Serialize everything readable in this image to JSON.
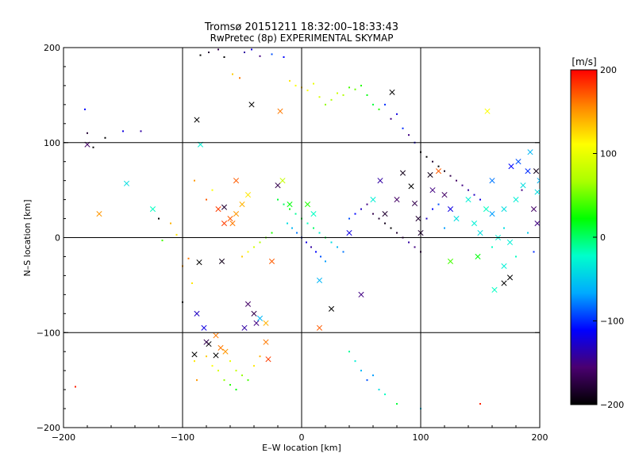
{
  "chart_data": {
    "type": "scatter",
    "title": "Tromsø 20151211 18:32:00–18:33:43",
    "subtitle": "RwPretec (8p) EXPERIMENTAL SKYMAP",
    "xlabel": "E–W location [km]",
    "ylabel": "N–S location [km]",
    "xlim": [
      -200,
      200
    ],
    "ylim": [
      -200,
      200
    ],
    "x_ticks": [
      -200,
      -100,
      0,
      100,
      200
    ],
    "y_ticks": [
      -200,
      -100,
      0,
      100,
      200
    ],
    "x_tick_labels": [
      "−200",
      "−100",
      "0",
      "100",
      "200"
    ],
    "y_tick_labels": [
      "−200",
      "−100",
      "0",
      "100",
      "200"
    ],
    "grid": true,
    "colorbar": {
      "label": "[m/s]",
      "range": [
        -200,
        200
      ],
      "ticks": [
        200,
        100,
        0,
        -100,
        -200
      ],
      "tick_labels": [
        "200",
        "100",
        "0",
        "−100",
        "−200"
      ],
      "colormap": [
        "#000000",
        "#4a0070",
        "#0000ff",
        "#00aaff",
        "#00ffcc",
        "#00ff00",
        "#aaff00",
        "#ffff00",
        "#ff8800",
        "#ff0000"
      ]
    },
    "series": [
      {
        "marker": "x",
        "points": [
          [
            -180,
            98,
            -160
          ],
          [
            -170,
            25,
            150
          ],
          [
            -147,
            57,
            -40
          ],
          [
            -125,
            30,
            -20
          ],
          [
            -88,
            124,
            -200
          ],
          [
            -85,
            98,
            -30
          ],
          [
            -86,
            -26,
            -200
          ],
          [
            -82,
            -95,
            -120
          ],
          [
            -78,
            -112,
            -200
          ],
          [
            -90,
            -123,
            -200
          ],
          [
            -88,
            -80,
            -130
          ],
          [
            -80,
            -110,
            -170
          ],
          [
            -72,
            -124,
            -200
          ],
          [
            -72,
            -103,
            160
          ],
          [
            -68,
            -116,
            160
          ],
          [
            -64,
            -120,
            150
          ],
          [
            -60,
            20,
            170
          ],
          [
            -58,
            15,
            160
          ],
          [
            -55,
            25,
            150
          ],
          [
            -55,
            60,
            170
          ],
          [
            -50,
            35,
            140
          ],
          [
            -45,
            45,
            120
          ],
          [
            -70,
            30,
            180
          ],
          [
            -67,
            -25,
            -190
          ],
          [
            -65,
            32,
            -180
          ],
          [
            -65,
            15,
            180
          ],
          [
            -48,
            -95,
            -140
          ],
          [
            -45,
            -70,
            -160
          ],
          [
            -40,
            -80,
            -170
          ],
          [
            -38,
            -90,
            -150
          ],
          [
            -35,
            -85,
            -60
          ],
          [
            -30,
            -110,
            160
          ],
          [
            -30,
            -90,
            140
          ],
          [
            -28,
            -128,
            180
          ],
          [
            -25,
            -25,
            170
          ],
          [
            -20,
            55,
            -170
          ],
          [
            -42,
            140,
            -200
          ],
          [
            -18,
            133,
            160
          ],
          [
            -16,
            60,
            80
          ],
          [
            -10,
            35,
            20
          ],
          [
            5,
            35,
            30
          ],
          [
            10,
            25,
            -20
          ],
          [
            15,
            -45,
            -60
          ],
          [
            15,
            -95,
            170
          ],
          [
            25,
            -75,
            -200
          ],
          [
            40,
            5,
            -120
          ],
          [
            50,
            -60,
            -150
          ],
          [
            60,
            40,
            -30
          ],
          [
            66,
            60,
            -140
          ],
          [
            70,
            25,
            -180
          ],
          [
            76,
            153,
            -200
          ],
          [
            80,
            40,
            -160
          ],
          [
            85,
            68,
            -190
          ],
          [
            92,
            54,
            -200
          ],
          [
            95,
            36,
            -170
          ],
          [
            98,
            20,
            -180
          ],
          [
            100,
            5,
            -180
          ],
          [
            108,
            66,
            -190
          ],
          [
            110,
            50,
            -150
          ],
          [
            115,
            70,
            170
          ],
          [
            120,
            45,
            -160
          ],
          [
            125,
            30,
            -120
          ],
          [
            125,
            -25,
            40
          ],
          [
            130,
            20,
            -40
          ],
          [
            140,
            40,
            -30
          ],
          [
            145,
            15,
            -30
          ],
          [
            150,
            5,
            -40
          ],
          [
            155,
            30,
            -20
          ],
          [
            156,
            133,
            110
          ],
          [
            160,
            60,
            -80
          ],
          [
            160,
            25,
            -70
          ],
          [
            165,
            0,
            -30
          ],
          [
            170,
            30,
            -40
          ],
          [
            170,
            -30,
            -30
          ],
          [
            170,
            -48,
            -200
          ],
          [
            175,
            -5,
            -30
          ],
          [
            176,
            75,
            -110
          ],
          [
            180,
            40,
            -30
          ],
          [
            182,
            80,
            -90
          ],
          [
            186,
            55,
            -40
          ],
          [
            190,
            70,
            -100
          ],
          [
            192,
            90,
            -60
          ],
          [
            195,
            30,
            -160
          ],
          [
            197,
            70,
            -190
          ],
          [
            198,
            48,
            -40
          ],
          [
            198,
            15,
            -150
          ],
          [
            200,
            60,
            -60
          ],
          [
            162,
            -55,
            -20
          ],
          [
            175,
            -42,
            -200
          ],
          [
            148,
            -20,
            20
          ]
        ]
      },
      {
        "marker": "dot",
        "points": [
          [
            -180,
            110,
            -180
          ],
          [
            -175,
            95,
            -200
          ],
          [
            -165,
            105,
            -200
          ],
          [
            -182,
            135,
            -110
          ],
          [
            -150,
            112,
            -120
          ],
          [
            -135,
            112,
            -140
          ],
          [
            -120,
            20,
            -200
          ],
          [
            -117,
            -3,
            40
          ],
          [
            -95,
            -22,
            160
          ],
          [
            -92,
            -48,
            120
          ],
          [
            -90,
            -130,
            120
          ],
          [
            -88,
            -150,
            150
          ],
          [
            -85,
            192,
            -200
          ],
          [
            -78,
            195,
            -180
          ],
          [
            -70,
            198,
            -170
          ],
          [
            -65,
            190,
            -200
          ],
          [
            -58,
            172,
            130
          ],
          [
            -52,
            168,
            160
          ],
          [
            -48,
            195,
            -140
          ],
          [
            -42,
            198,
            -120
          ],
          [
            -35,
            191,
            -150
          ],
          [
            -25,
            193,
            -90
          ],
          [
            -15,
            190,
            -110
          ],
          [
            -10,
            165,
            120
          ],
          [
            -5,
            160,
            110
          ],
          [
            0,
            158,
            130
          ],
          [
            5,
            155,
            110
          ],
          [
            10,
            162,
            100
          ],
          [
            15,
            148,
            90
          ],
          [
            20,
            140,
            60
          ],
          [
            25,
            145,
            70
          ],
          [
            30,
            152,
            85
          ],
          [
            35,
            150,
            70
          ],
          [
            40,
            158,
            40
          ],
          [
            45,
            156,
            50
          ],
          [
            50,
            160,
            30
          ],
          [
            55,
            150,
            20
          ],
          [
            60,
            140,
            10
          ],
          [
            65,
            135,
            30
          ],
          [
            70,
            140,
            -100
          ],
          [
            75,
            125,
            -150
          ],
          [
            80,
            130,
            -120
          ],
          [
            85,
            115,
            -100
          ],
          [
            90,
            108,
            -150
          ],
          [
            95,
            100,
            -120
          ],
          [
            100,
            90,
            -200
          ],
          [
            105,
            85,
            -200
          ],
          [
            110,
            80,
            -180
          ],
          [
            115,
            75,
            -200
          ],
          [
            120,
            70,
            -190
          ],
          [
            125,
            65,
            -170
          ],
          [
            130,
            60,
            -160
          ],
          [
            135,
            55,
            -150
          ],
          [
            140,
            50,
            -140
          ],
          [
            145,
            45,
            -130
          ],
          [
            150,
            40,
            -120
          ],
          [
            -20,
            40,
            10
          ],
          [
            -15,
            35,
            0
          ],
          [
            -10,
            30,
            20
          ],
          [
            -5,
            25,
            -10
          ],
          [
            0,
            20,
            10
          ],
          [
            5,
            15,
            -20
          ],
          [
            10,
            10,
            0
          ],
          [
            15,
            5,
            -30
          ],
          [
            20,
            0,
            10
          ],
          [
            25,
            -5,
            -40
          ],
          [
            30,
            -10,
            -60
          ],
          [
            35,
            -15,
            -80
          ],
          [
            -12,
            15,
            -40
          ],
          [
            -8,
            10,
            -60
          ],
          [
            -4,
            5,
            -80
          ],
          [
            0,
            0,
            -100
          ],
          [
            4,
            -5,
            -120
          ],
          [
            8,
            -10,
            -140
          ],
          [
            12,
            -15,
            -110
          ],
          [
            16,
            -20,
            -90
          ],
          [
            20,
            -25,
            -70
          ],
          [
            -25,
            5,
            30
          ],
          [
            -30,
            0,
            50
          ],
          [
            -35,
            -5,
            70
          ],
          [
            -40,
            -10,
            90
          ],
          [
            -45,
            -15,
            110
          ],
          [
            -50,
            -20,
            130
          ],
          [
            40,
            20,
            -90
          ],
          [
            45,
            25,
            -110
          ],
          [
            50,
            30,
            -130
          ],
          [
            55,
            35,
            -150
          ],
          [
            60,
            25,
            -170
          ],
          [
            65,
            20,
            -180
          ],
          [
            70,
            15,
            -190
          ],
          [
            75,
            10,
            -200
          ],
          [
            80,
            5,
            -180
          ],
          [
            85,
            0,
            -160
          ],
          [
            90,
            -5,
            -140
          ],
          [
            95,
            -10,
            -150
          ],
          [
            100,
            -15,
            -170
          ],
          [
            105,
            20,
            -130
          ],
          [
            110,
            30,
            -110
          ],
          [
            115,
            35,
            -90
          ],
          [
            120,
            10,
            -70
          ],
          [
            -60,
            -130,
            100
          ],
          [
            -55,
            -140,
            80
          ],
          [
            -50,
            -145,
            60
          ],
          [
            -45,
            -150,
            40
          ],
          [
            -40,
            -135,
            120
          ],
          [
            -35,
            -125,
            140
          ],
          [
            -65,
            -150,
            60
          ],
          [
            -70,
            -140,
            90
          ],
          [
            -75,
            -135,
            110
          ],
          [
            -80,
            -125,
            130
          ],
          [
            -60,
            -155,
            30
          ],
          [
            -55,
            -160,
            20
          ],
          [
            40,
            -120,
            -10
          ],
          [
            45,
            -130,
            -30
          ],
          [
            50,
            -140,
            -60
          ],
          [
            55,
            -150,
            -90
          ],
          [
            60,
            -145,
            -70
          ],
          [
            65,
            -160,
            -40
          ],
          [
            70,
            -165,
            -20
          ],
          [
            80,
            -175,
            10
          ],
          [
            100,
            -180,
            -50
          ],
          [
            150,
            -175,
            190
          ],
          [
            -190,
            -157,
            190
          ],
          [
            -100,
            -68,
            -200
          ],
          [
            -100,
            -30,
            150
          ],
          [
            -75,
            50,
            110
          ],
          [
            -90,
            60,
            150
          ],
          [
            -80,
            40,
            170
          ],
          [
            -105,
            3,
            120
          ],
          [
            -110,
            15,
            140
          ],
          [
            160,
            -10,
            -20
          ],
          [
            170,
            10,
            -40
          ],
          [
            180,
            -20,
            -20
          ],
          [
            190,
            5,
            -50
          ],
          [
            195,
            -15,
            -100
          ],
          [
            185,
            50,
            -150
          ]
        ]
      }
    ]
  }
}
